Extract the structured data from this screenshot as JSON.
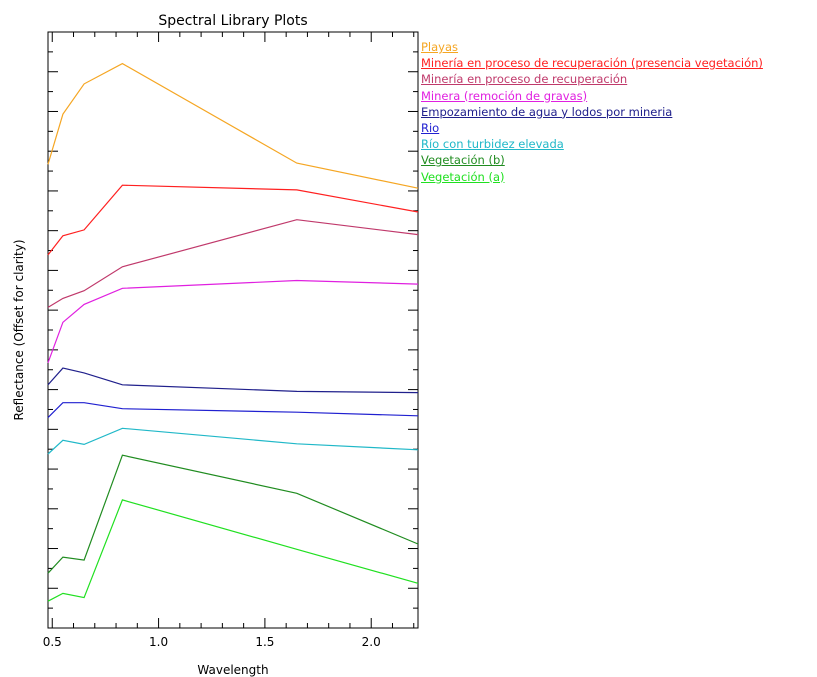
{
  "chart_data": {
    "type": "line",
    "title": "Spectral Library Plots",
    "xlabel": "Wavelength",
    "ylabel": "Reflectance (Offset for clarity)",
    "xlim": [
      0.48,
      2.22
    ],
    "ylim": [
      0,
      1
    ],
    "x_ticks": [
      "0.5",
      "1.0",
      "1.5",
      "2.0"
    ],
    "x_tick_values": [
      0.5,
      1.0,
      1.5,
      2.0
    ],
    "y_tick_labels_shown": false,
    "grid": false,
    "legend_position": "right",
    "x": [
      0.48,
      0.55,
      0.65,
      0.83,
      1.65,
      2.22
    ],
    "series": [
      {
        "name": "Playas",
        "color": "#f5a623",
        "values": [
          0.778,
          0.862,
          0.913,
          0.947,
          0.78,
          0.738
        ]
      },
      {
        "name": "Minería en proceso de recuperación (presencia vegetación)",
        "color": "#ff2020",
        "values": [
          0.626,
          0.658,
          0.668,
          0.743,
          0.735,
          0.698
        ]
      },
      {
        "name": "Minería en proceso de recuperación",
        "color": "#c0396b",
        "values": [
          0.538,
          0.553,
          0.566,
          0.606,
          0.685,
          0.66
        ]
      },
      {
        "name": "Minera (remoción de gravas)",
        "color": "#e020e0",
        "values": [
          0.445,
          0.513,
          0.543,
          0.57,
          0.583,
          0.577
        ]
      },
      {
        "name": "Empozamiento de agua y lodos por mineria",
        "color": "#20208c",
        "values": [
          0.408,
          0.436,
          0.428,
          0.408,
          0.397,
          0.395
        ]
      },
      {
        "name": "Rio",
        "color": "#2020d0",
        "values": [
          0.353,
          0.378,
          0.378,
          0.368,
          0.362,
          0.356
        ]
      },
      {
        "name": "Río con turbidez elevada",
        "color": "#20b8c8",
        "values": [
          0.292,
          0.315,
          0.308,
          0.335,
          0.309,
          0.299
        ]
      },
      {
        "name": "Vegetación (b)",
        "color": "#208c20",
        "values": [
          0.092,
          0.119,
          0.114,
          0.29,
          0.226,
          0.141
        ]
      },
      {
        "name": "Vegetación (a)",
        "color": "#20e020",
        "values": [
          0.045,
          0.058,
          0.051,
          0.215,
          0.132,
          0.075
        ]
      }
    ]
  }
}
